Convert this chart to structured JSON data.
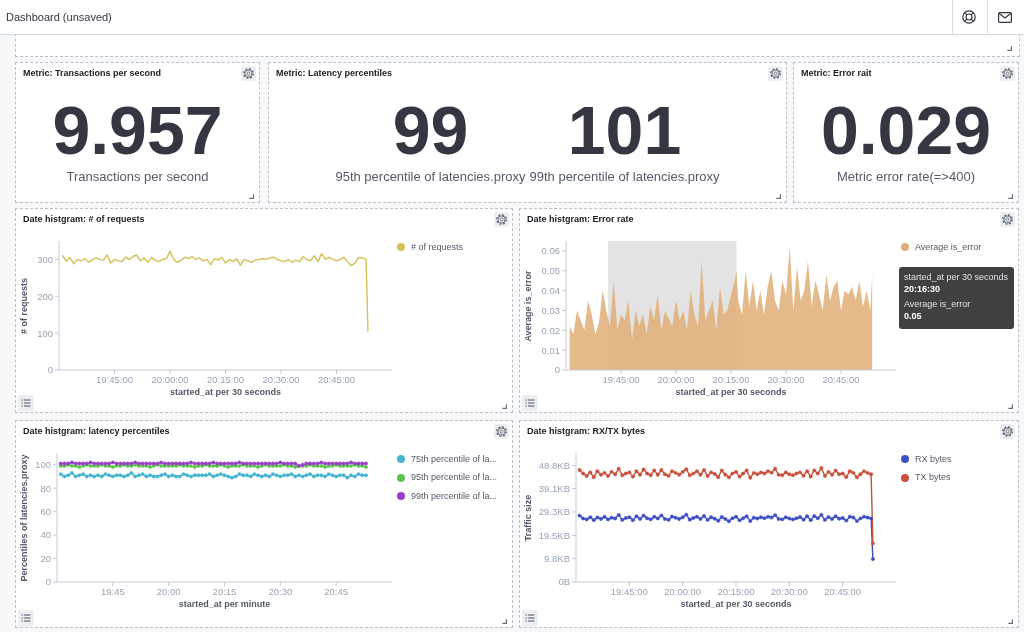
{
  "chart_data": [
    {
      "type": "other",
      "title": "Dashboard (unsaved)"
    },
    {
      "type": "other",
      "title": "Metric: Transactions per second",
      "categories": [
        "Transactions per second"
      ],
      "values": [
        9.957
      ],
      "data_labels": true
    },
    {
      "type": "other",
      "title": "Metric: Latency percentiles",
      "categories": [
        "95th percentile of latencies.proxy",
        "99th percentile of latencies.proxy"
      ],
      "values": [
        99,
        101
      ],
      "data_labels": true
    },
    {
      "type": "other",
      "title": "Metric: Error rait",
      "categories": [
        "Metric error rate(=>400)"
      ],
      "values": [
        0.029
      ],
      "data_labels": true
    },
    {
      "type": "line",
      "title": "Date histgram: # of requests",
      "xlabel": "started_at per 30 seconds",
      "ylabel": "# of requests",
      "legend": "right",
      "x": [
        19.5167,
        19.5333,
        19.55,
        19.5667,
        19.5833,
        19.6,
        19.6167,
        19.6333,
        19.65,
        19.6667,
        19.6833,
        19.7,
        19.7167,
        19.7333,
        19.75,
        19.7667,
        19.7833,
        19.8,
        19.8167,
        19.8333,
        19.85,
        19.8667,
        19.8833,
        19.9,
        19.9167,
        19.9333,
        19.95,
        19.9667,
        19.9833,
        20,
        20.0167,
        20.0333,
        20.05,
        20.0667,
        20.0833,
        20.1,
        20.1167,
        20.1333,
        20.15,
        20.1667,
        20.1833,
        20.2,
        20.2167,
        20.2333,
        20.25,
        20.2667,
        20.2833,
        20.3,
        20.3167,
        20.3333,
        20.35,
        20.3667,
        20.3833,
        20.4,
        20.4167,
        20.4333,
        20.45,
        20.4667,
        20.4833,
        20.5,
        20.5167,
        20.5333,
        20.55,
        20.5667,
        20.5833,
        20.6,
        20.6167,
        20.6333,
        20.65,
        20.6667,
        20.6833,
        20.7,
        20.7167,
        20.7333,
        20.75,
        20.7667,
        20.7833,
        20.8,
        20.8167,
        20.8333,
        20.85,
        20.8667,
        20.8833,
        20.8917
      ],
      "xlim": [
        19.5,
        21
      ],
      "xticks": [
        {
          "value": 19.75,
          "label": "19:45:00"
        },
        {
          "value": 20,
          "label": "20:00:00"
        },
        {
          "value": 20.25,
          "label": "20:15:00"
        },
        {
          "value": 20.5,
          "label": "20:30:00"
        },
        {
          "value": 20.75,
          "label": "20:45:00"
        }
      ],
      "ylim": [
        0,
        350
      ],
      "yticks": [
        0,
        100,
        200,
        300
      ],
      "series": [
        {
          "name": "# of requests",
          "color": "#d6bf57",
          "values": [
            310,
            295,
            305,
            288,
            300,
            296,
            302,
            292,
            298,
            305,
            300,
            298,
            312,
            290,
            300,
            296,
            294,
            306,
            300,
            308,
            312,
            296,
            304,
            292,
            306,
            298,
            294,
            300,
            302,
            322,
            300,
            292,
            298,
            306,
            302,
            308,
            300,
            304,
            296,
            300,
            285,
            302,
            298,
            306,
            290,
            300,
            294,
            302,
            284,
            300,
            296,
            292,
            298,
            300,
            302,
            300,
            304,
            306,
            300,
            296,
            294,
            300,
            292,
            298,
            294,
            308,
            300,
            296,
            310,
            294,
            316,
            300,
            306,
            300,
            296,
            300,
            306,
            294,
            283,
            290,
            305,
            304,
            300,
            105
          ]
        }
      ]
    },
    {
      "type": "area",
      "title": "Date histgram: Error rate",
      "xlabel": "started_at per 30 seconds",
      "ylabel": "Average is_error",
      "legend": "right",
      "x": [
        19.5167,
        19.5333,
        19.55,
        19.5667,
        19.5833,
        19.6,
        19.6167,
        19.6333,
        19.65,
        19.6667,
        19.6833,
        19.7,
        19.7167,
        19.7333,
        19.75,
        19.7667,
        19.7833,
        19.8,
        19.8167,
        19.8333,
        19.85,
        19.8667,
        19.8833,
        19.9,
        19.9167,
        19.9333,
        19.95,
        19.9667,
        19.9833,
        20,
        20.0167,
        20.0333,
        20.05,
        20.0667,
        20.0833,
        20.1,
        20.1167,
        20.1333,
        20.15,
        20.1667,
        20.1833,
        20.2,
        20.2167,
        20.2333,
        20.25,
        20.2667,
        20.275,
        20.2833,
        20.3,
        20.3167,
        20.3333,
        20.35,
        20.3667,
        20.3833,
        20.4,
        20.4167,
        20.4333,
        20.45,
        20.4667,
        20.4833,
        20.5,
        20.5167,
        20.5333,
        20.55,
        20.5667,
        20.5833,
        20.6,
        20.6167,
        20.6333,
        20.65,
        20.6667,
        20.6833,
        20.7,
        20.7167,
        20.7333,
        20.75,
        20.7667,
        20.7833,
        20.8,
        20.8167,
        20.8333,
        20.85,
        20.8667,
        20.8833,
        20.8917
      ],
      "xlim": [
        19.5,
        21
      ],
      "xticks": [
        {
          "value": 19.75,
          "label": "19:45:00"
        },
        {
          "value": 20,
          "label": "20:00:00"
        },
        {
          "value": 20.25,
          "label": "20:15:00"
        },
        {
          "value": 20.5,
          "label": "20:30:00"
        },
        {
          "value": 20.75,
          "label": "20:45:00"
        }
      ],
      "ylim": [
        0,
        0.065
      ],
      "yticks": [
        0,
        0.01,
        0.02,
        0.03,
        0.04,
        0.05,
        0.06
      ],
      "bands": [
        {
          "axis": "x",
          "from": 19.6917,
          "to": 20.275,
          "color": "#e3e3e3"
        }
      ],
      "annotations": [
        "started_at per 30 seconds",
        "20:16:30",
        "Average is_error",
        "0.05"
      ],
      "series": [
        {
          "name": "Average is_error",
          "color": "#dfae76",
          "values": [
            0.022,
            0.018,
            0.03,
            0.025,
            0.02,
            0.035,
            0.028,
            0.018,
            0.024,
            0.04,
            0.03,
            0.022,
            0.045,
            0.02,
            0.028,
            0.025,
            0.035,
            0.015,
            0.03,
            0.022,
            0.028,
            0.018,
            0.032,
            0.025,
            0.038,
            0.02,
            0.03,
            0.026,
            0.022,
            0.035,
            0.025,
            0.03,
            0.02,
            0.04,
            0.028,
            0.022,
            0.055,
            0.025,
            0.03,
            0.035,
            0.02,
            0.042,
            0.028,
            0.03,
            0.038,
            0.045,
            0.05,
            0.035,
            0.028,
            0.05,
            0.032,
            0.045,
            0.03,
            0.04,
            0.028,
            0.042,
            0.05,
            0.035,
            0.03,
            0.045,
            0.038,
            0.062,
            0.03,
            0.052,
            0.035,
            0.04,
            0.055,
            0.032,
            0.045,
            0.038,
            0.03,
            0.048,
            0.035,
            0.042,
            0.045,
            0.03,
            0.04,
            0.038,
            0.042,
            0.035,
            0.045,
            0.032,
            0.04,
            0.03,
            0.048
          ]
        }
      ]
    },
    {
      "type": "line",
      "title": "Date histgram: latency percentiles",
      "xlabel": "started_at per minute",
      "ylabel": "Percentiles of latencies.proxy",
      "legend": "right",
      "marker": "circle",
      "x": [
        19.5167,
        19.5333,
        19.55,
        19.5667,
        19.5833,
        19.6,
        19.6167,
        19.6333,
        19.65,
        19.6667,
        19.6833,
        19.7,
        19.7167,
        19.7333,
        19.75,
        19.7667,
        19.7833,
        19.8,
        19.8167,
        19.8333,
        19.85,
        19.8667,
        19.8833,
        19.9,
        19.9167,
        19.9333,
        19.95,
        19.9667,
        19.9833,
        20,
        20.0167,
        20.0333,
        20.05,
        20.0667,
        20.0833,
        20.1,
        20.1167,
        20.1333,
        20.15,
        20.1667,
        20.1833,
        20.2,
        20.2167,
        20.2333,
        20.25,
        20.2667,
        20.2833,
        20.3,
        20.3167,
        20.3333,
        20.35,
        20.3667,
        20.3833,
        20.4,
        20.4167,
        20.4333,
        20.45,
        20.4667,
        20.4833,
        20.5,
        20.5167,
        20.5333,
        20.55,
        20.5667,
        20.5833,
        20.6,
        20.6167,
        20.6333,
        20.65,
        20.6667,
        20.6833,
        20.7,
        20.7167,
        20.7333,
        20.75,
        20.7667,
        20.7833,
        20.8,
        20.8167,
        20.8333,
        20.85,
        20.8667,
        20.8833
      ],
      "xlim": [
        19.5,
        21
      ],
      "xticks": [
        {
          "value": 19.75,
          "label": "19:45"
        },
        {
          "value": 20,
          "label": "20:00"
        },
        {
          "value": 20.25,
          "label": "20:15"
        },
        {
          "value": 20.5,
          "label": "20:30"
        },
        {
          "value": 20.75,
          "label": "20:45"
        }
      ],
      "ylim": [
        0,
        110
      ],
      "yticks": [
        0,
        20,
        40,
        60,
        80,
        100
      ],
      "series": [
        {
          "name": "75th percentile of la...",
          "color": "#45b5cf",
          "values": [
            92,
            90,
            91,
            93,
            90,
            91,
            92,
            90,
            91,
            90,
            91,
            90,
            92,
            91,
            90,
            91,
            91,
            90,
            91,
            93,
            90,
            91,
            92,
            90,
            91,
            90,
            90,
            91,
            92,
            90,
            91,
            90,
            90,
            92,
            91,
            90,
            91,
            91,
            91,
            91,
            92,
            90,
            91,
            92,
            91,
            90,
            89,
            90,
            92,
            91,
            91,
            90,
            92,
            91,
            90,
            91,
            90,
            92,
            91,
            90,
            91,
            91,
            92,
            90,
            91,
            90,
            91,
            92,
            90,
            91,
            91,
            90,
            92,
            91,
            90,
            91,
            91,
            89,
            91,
            90,
            92,
            91,
            91
          ]
        },
        {
          "name": "95th percentile of la...",
          "color": "#5bc44a",
          "values": [
            99,
            99,
            100,
            99,
            99,
            98,
            99,
            100,
            99,
            99,
            99,
            100,
            99,
            99,
            98,
            99,
            99,
            100,
            99,
            99,
            100,
            99,
            99,
            99,
            98,
            99,
            100,
            99,
            99,
            99,
            99,
            99,
            100,
            99,
            99,
            99,
            98,
            99,
            99,
            100,
            99,
            99,
            99,
            100,
            99,
            98,
            99,
            99,
            99,
            100,
            99,
            99,
            99,
            98,
            99,
            100,
            99,
            99,
            99,
            99,
            100,
            99,
            99,
            98,
            99,
            99,
            99,
            100,
            99,
            99,
            99,
            98,
            99,
            99,
            100,
            99,
            99,
            99,
            99,
            100,
            99,
            99,
            98
          ]
        },
        {
          "name": "99th percentile of la...",
          "color": "#9b3ec8",
          "values": [
            101,
            101,
            101,
            102,
            101,
            101,
            101,
            101,
            102,
            101,
            101,
            101,
            101,
            101,
            102,
            101,
            101,
            101,
            101,
            101,
            102,
            101,
            101,
            101,
            101,
            101,
            101,
            102,
            101,
            101,
            101,
            101,
            101,
            101,
            101,
            102,
            101,
            101,
            101,
            101,
            101,
            102,
            101,
            101,
            101,
            101,
            101,
            101,
            102,
            101,
            101,
            101,
            101,
            101,
            101,
            101,
            101,
            101,
            101,
            102,
            101,
            101,
            101,
            101,
            99,
            100,
            101,
            101,
            101,
            101,
            102,
            101,
            101,
            101,
            101,
            101,
            101,
            101,
            102,
            101,
            101,
            101,
            101
          ]
        }
      ]
    },
    {
      "type": "line",
      "title": "Date histgram: RX/TX bytes",
      "xlabel": "started_at per 30 seconds",
      "ylabel": "Traffic size",
      "legend": "right",
      "marker": "circle",
      "x": [
        19.5167,
        19.5333,
        19.55,
        19.5667,
        19.5833,
        19.6,
        19.6167,
        19.6333,
        19.65,
        19.6667,
        19.6833,
        19.7,
        19.7167,
        19.7333,
        19.75,
        19.7667,
        19.7833,
        19.8,
        19.8167,
        19.8333,
        19.85,
        19.8667,
        19.8833,
        19.9,
        19.9167,
        19.9333,
        19.95,
        19.9667,
        19.9833,
        20,
        20.0167,
        20.0333,
        20.05,
        20.0667,
        20.0833,
        20.1,
        20.1167,
        20.1333,
        20.15,
        20.1667,
        20.1833,
        20.2,
        20.2167,
        20.2333,
        20.25,
        20.2667,
        20.2833,
        20.3,
        20.3167,
        20.3333,
        20.35,
        20.3667,
        20.3833,
        20.4,
        20.4167,
        20.4333,
        20.45,
        20.4667,
        20.4833,
        20.5,
        20.5167,
        20.5333,
        20.55,
        20.5667,
        20.5833,
        20.6,
        20.6167,
        20.6333,
        20.65,
        20.6667,
        20.6833,
        20.7,
        20.7167,
        20.7333,
        20.75,
        20.7667,
        20.7833,
        20.8,
        20.8167,
        20.8333,
        20.85,
        20.8667,
        20.8833,
        20.8917
      ],
      "xlim": [
        19.5,
        21
      ],
      "xticks": [
        {
          "value": 19.75,
          "label": "19:45:00"
        },
        {
          "value": 20,
          "label": "20:00:00"
        },
        {
          "value": 20.25,
          "label": "20:15:00"
        },
        {
          "value": 20.5,
          "label": "20:30:00"
        },
        {
          "value": 20.75,
          "label": "20:45:00"
        }
      ],
      "ylim": [
        0,
        54
      ],
      "yticks": [
        {
          "value": 0,
          "label": "0B"
        },
        {
          "value": 9.8,
          "label": "9.8KB"
        },
        {
          "value": 19.5,
          "label": "19.5KB"
        },
        {
          "value": 29.3,
          "label": "29.3KB"
        },
        {
          "value": 39.1,
          "label": "39.1KB"
        },
        {
          "value": 48.8,
          "label": "48.8KB"
        }
      ],
      "series": [
        {
          "name": "RX bytes",
          "color": "#3d50c3",
          "values": [
            27.8,
            26.6,
            26.2,
            27.1,
            25.9,
            27.0,
            26.4,
            27.3,
            26.2,
            26.9,
            26.6,
            28.1,
            26.0,
            26.8,
            27.1,
            25.9,
            27.5,
            26.4,
            27.8,
            26.7,
            26.2,
            27.3,
            26.6,
            27.9,
            26.4,
            26.0,
            27.4,
            26.9,
            26.4,
            27.1,
            28.2,
            26.1,
            26.8,
            27.3,
            26.4,
            27.6,
            26.0,
            27.1,
            26.5,
            25.6,
            27.2,
            26.4,
            25.4,
            26.7,
            27.3,
            25.8,
            26.7,
            27.5,
            25.5,
            26.9,
            26.6,
            27.1,
            26.7,
            27.3,
            27.0,
            28.0,
            26.4,
            26.2,
            27.1,
            26.6,
            26.2,
            26.7,
            27.2,
            26.1,
            27.5,
            25.9,
            27.6,
            26.7,
            28.1,
            26.0,
            27.2,
            26.4,
            27.5,
            26.5,
            26.8,
            25.7,
            27.3,
            27.0,
            25.5,
            26.6,
            27.3,
            27.0,
            26.6,
            9.6
          ]
        },
        {
          "name": "TX bytes",
          "color": "#c9503c",
          "values": [
            46.9,
            45.4,
            44.4,
            45.9,
            43.9,
            46.4,
            44.9,
            45.7,
            44.4,
            46.1,
            45.1,
            47.4,
            44.7,
            45.4,
            45.9,
            44.1,
            46.4,
            44.9,
            47.1,
            45.4,
            44.7,
            46.7,
            44.9,
            46.9,
            45.1,
            44.4,
            46.4,
            45.7,
            44.9,
            46.1,
            47.2,
            44.7,
            45.4,
            46.4,
            44.9,
            46.9,
            44.4,
            45.9,
            45.2,
            43.9,
            46.7,
            44.9,
            43.8,
            45.4,
            46.1,
            44.1,
            45.4,
            46.7,
            43.6,
            45.7,
            45.1,
            45.9,
            45.4,
            46.4,
            45.7,
            47.4,
            44.9,
            44.7,
            45.9,
            45.1,
            44.7,
            45.4,
            45.9,
            44.5,
            46.4,
            44.1,
            46.7,
            45.4,
            47.7,
            44.4,
            46.1,
            44.9,
            46.7,
            45.1,
            45.4,
            43.9,
            46.4,
            45.7,
            43.8,
            45.1,
            46.4,
            45.7,
            45.1,
            16.1
          ]
        }
      ]
    }
  ]
}
